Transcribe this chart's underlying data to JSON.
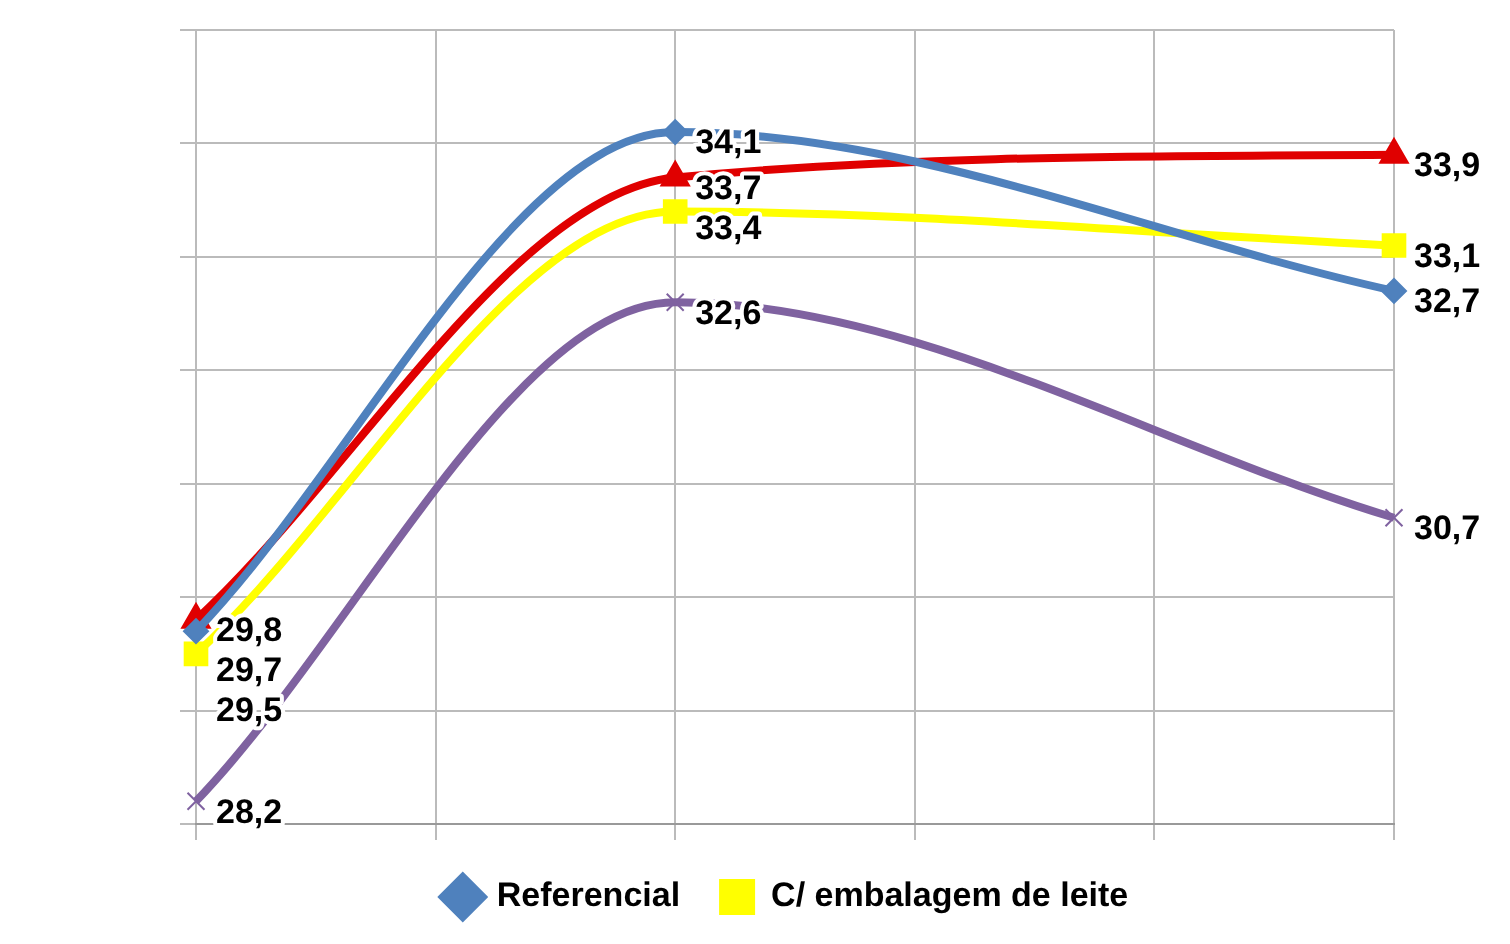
{
  "chart_data": {
    "type": "line",
    "categories": [
      null,
      null,
      null,
      null,
      null,
      null
    ],
    "grid": true,
    "legend": "bottom",
    "tick_labels": false,
    "series": [
      {
        "name": "Referencial",
        "color": "#4f81bd",
        "marker": "diamond",
        "values": [
          29.7,
          null,
          34.1,
          null,
          null,
          32.7
        ],
        "value_labels": [
          "29,7",
          null,
          "34,1",
          null,
          null,
          "32,7"
        ]
      },
      {
        "color": "#e00000",
        "marker": "triangle",
        "values": [
          29.8,
          null,
          33.7,
          null,
          null,
          33.9
        ],
        "value_labels": [
          "29,8",
          null,
          "33,7",
          null,
          null,
          "33,9"
        ]
      },
      {
        "name": "C/ embalagem de leite",
        "color": "#ffff00",
        "marker": "square",
        "values": [
          29.5,
          null,
          33.4,
          null,
          null,
          33.1
        ],
        "value_labels": [
          "29,5",
          null,
          "33,4",
          null,
          null,
          "33,1"
        ]
      },
      {
        "color": "#7f62a0",
        "marker": "cross",
        "values": [
          28.2,
          null,
          32.6,
          null,
          null,
          30.7
        ],
        "value_labels": [
          "28,2",
          null,
          "32,6",
          null,
          null,
          "30,7"
        ]
      }
    ]
  }
}
